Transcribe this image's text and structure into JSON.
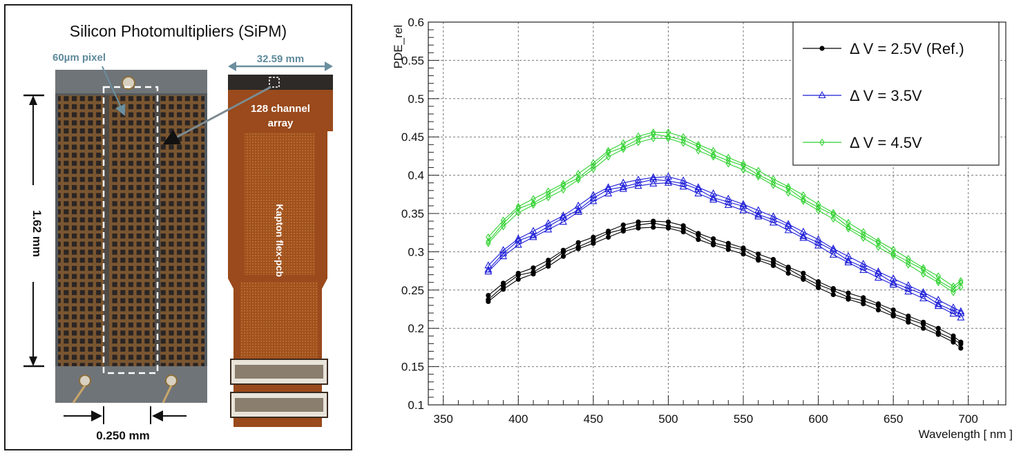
{
  "photo": {
    "title": "Silicon Photomultipliers (SiPM)",
    "pixel_label": "60µm pixel",
    "width_label": "32.59 mm",
    "channel_label_1": "128 channel",
    "channel_label_2": "array",
    "height_label": "1.62 mm",
    "pitch_label": "0.250 mm",
    "pcb_label": "Kapton flex-pcb"
  },
  "colors": {
    "ref": "#000000",
    "v35": "#1b1bd8",
    "v45": "#2ed12e",
    "copper": "#9a4a1c",
    "grid": "#777777"
  },
  "chart_data": {
    "type": "line",
    "title": "",
    "xlabel": "Wavelength [ nm ]",
    "ylabel": "PDE_rel",
    "xlim": [
      340,
      725
    ],
    "ylim": [
      0.1,
      0.6
    ],
    "xticks": [
      350,
      400,
      450,
      500,
      550,
      600,
      650,
      700
    ],
    "yticks": [
      0.1,
      0.15,
      0.2,
      0.25,
      0.3,
      0.35,
      0.4,
      0.45,
      0.5,
      0.55,
      0.6
    ],
    "grid": true,
    "legend_position": "top-right",
    "x": [
      380,
      390,
      400,
      410,
      420,
      430,
      440,
      450,
      460,
      470,
      480,
      490,
      500,
      510,
      520,
      530,
      540,
      550,
      560,
      570,
      580,
      590,
      600,
      610,
      620,
      630,
      640,
      650,
      660,
      670,
      680,
      690,
      695
    ],
    "series": [
      {
        "name": "Δ V = 2.5V (Ref.)",
        "marker": "circle",
        "color": "#000000",
        "values": [
          0.239,
          0.255,
          0.268,
          0.275,
          0.285,
          0.298,
          0.308,
          0.315,
          0.323,
          0.331,
          0.335,
          0.336,
          0.335,
          0.33,
          0.32,
          0.313,
          0.307,
          0.301,
          0.293,
          0.286,
          0.276,
          0.268,
          0.257,
          0.248,
          0.242,
          0.236,
          0.228,
          0.22,
          0.212,
          0.204,
          0.196,
          0.186,
          0.178
        ]
      },
      {
        "name": "Δ V = 3.5V",
        "marker": "triangle",
        "color": "#1b1bd8",
        "values": [
          0.278,
          0.298,
          0.313,
          0.323,
          0.333,
          0.343,
          0.356,
          0.37,
          0.38,
          0.386,
          0.39,
          0.393,
          0.394,
          0.389,
          0.38,
          0.372,
          0.365,
          0.358,
          0.35,
          0.342,
          0.332,
          0.322,
          0.312,
          0.3,
          0.29,
          0.28,
          0.27,
          0.261,
          0.252,
          0.243,
          0.233,
          0.223,
          0.218
        ]
      },
      {
        "name": "Δ V = 4.5V",
        "marker": "diamond",
        "color": "#2ed12e",
        "values": [
          0.315,
          0.337,
          0.355,
          0.365,
          0.375,
          0.385,
          0.398,
          0.412,
          0.428,
          0.438,
          0.447,
          0.452,
          0.452,
          0.446,
          0.436,
          0.428,
          0.419,
          0.411,
          0.402,
          0.391,
          0.381,
          0.37,
          0.358,
          0.347,
          0.334,
          0.322,
          0.31,
          0.299,
          0.287,
          0.275,
          0.264,
          0.251,
          0.258
        ]
      }
    ]
  }
}
